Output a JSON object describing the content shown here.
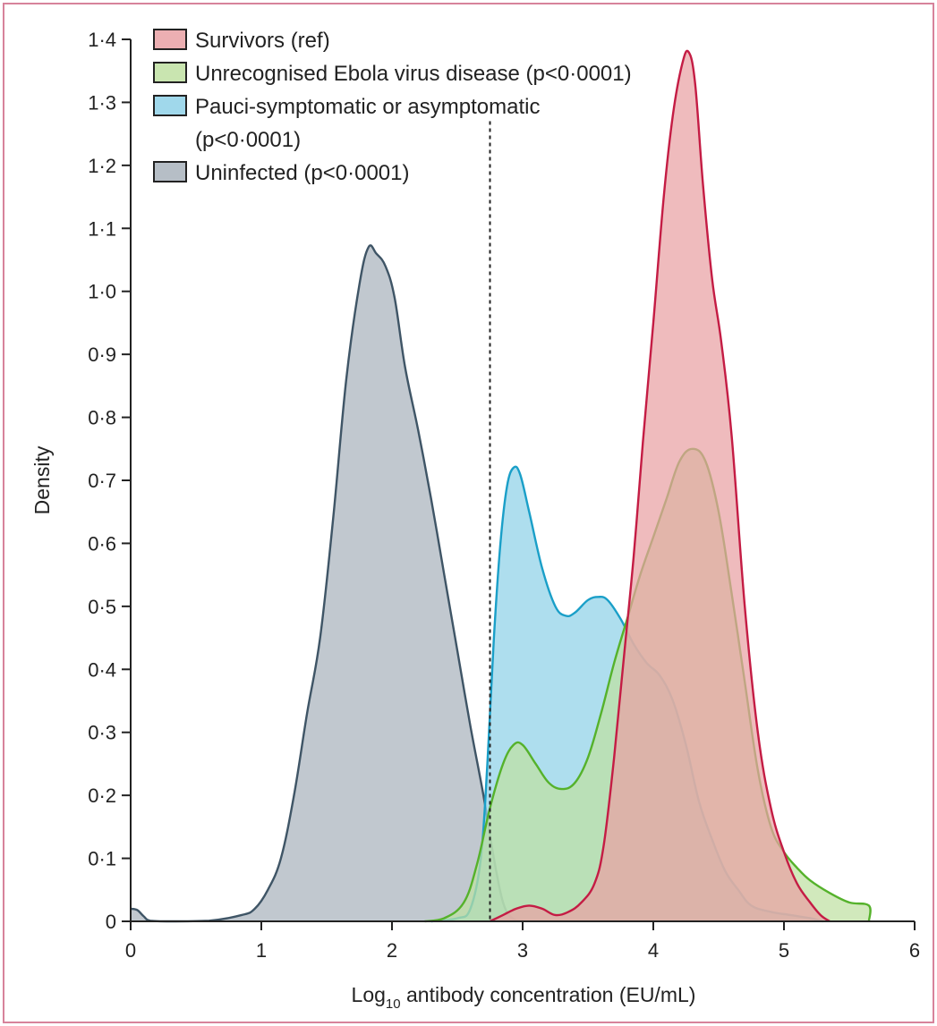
{
  "chart_data": {
    "type": "area",
    "title": "",
    "xlabel_main": "Log",
    "xlabel_sub": "10",
    "xlabel_rest": " antibody concentration (EU/mL)",
    "ylabel": "Density",
    "xlim": [
      0,
      6
    ],
    "ylim": [
      0,
      1.4
    ],
    "x_ticks": [
      "0",
      "1",
      "2",
      "3",
      "4",
      "5",
      "6"
    ],
    "y_ticks": [
      "0",
      "0·1",
      "0·2",
      "0·3",
      "0·4",
      "0·5",
      "0·6",
      "0·7",
      "0·8",
      "0·9",
      "1·0",
      "1·1",
      "1·2",
      "1·3",
      "1·4"
    ],
    "reference_line_x": 2.75,
    "grid": false,
    "legend_position": "top-left",
    "series": [
      {
        "name": "Uninfected (p<0·0001)",
        "legend_lines": [
          "Uninfected (p<0·0001)"
        ],
        "fill": "#a9b3bc",
        "stroke": "#3f5566",
        "points": [
          [
            0,
            0.02
          ],
          [
            0.05,
            0.018
          ],
          [
            0.1,
            0.008
          ],
          [
            0.15,
            0.001
          ],
          [
            0.3,
            0
          ],
          [
            0.6,
            0.001
          ],
          [
            0.85,
            0.01
          ],
          [
            0.95,
            0.02
          ],
          [
            1.05,
            0.05
          ],
          [
            1.15,
            0.1
          ],
          [
            1.25,
            0.2
          ],
          [
            1.35,
            0.33
          ],
          [
            1.45,
            0.45
          ],
          [
            1.55,
            0.64
          ],
          [
            1.65,
            0.86
          ],
          [
            1.75,
            1.01
          ],
          [
            1.82,
            1.07
          ],
          [
            1.88,
            1.06
          ],
          [
            1.95,
            1.04
          ],
          [
            2.02,
            0.99
          ],
          [
            2.1,
            0.88
          ],
          [
            2.2,
            0.78
          ],
          [
            2.3,
            0.67
          ],
          [
            2.4,
            0.55
          ],
          [
            2.5,
            0.43
          ],
          [
            2.6,
            0.31
          ],
          [
            2.7,
            0.2
          ],
          [
            2.78,
            0.1
          ],
          [
            2.85,
            0.03
          ],
          [
            2.92,
            0.005
          ],
          [
            3.0,
            0
          ]
        ]
      },
      {
        "name": "Pauci-symptomatic or  asymptomatic (p<0·0001)",
        "legend_lines": [
          "Pauci-symptomatic or  asymptomatic",
          "(p<0·0001)"
        ],
        "fill": "#8fd1e8",
        "stroke": "#1a9fc8",
        "points": [
          [
            2.3,
            0
          ],
          [
            2.5,
            0.005
          ],
          [
            2.6,
            0.02
          ],
          [
            2.68,
            0.1
          ],
          [
            2.73,
            0.25
          ],
          [
            2.78,
            0.45
          ],
          [
            2.83,
            0.6
          ],
          [
            2.88,
            0.69
          ],
          [
            2.93,
            0.72
          ],
          [
            2.98,
            0.71
          ],
          [
            3.05,
            0.65
          ],
          [
            3.15,
            0.56
          ],
          [
            3.25,
            0.5
          ],
          [
            3.33,
            0.485
          ],
          [
            3.4,
            0.49
          ],
          [
            3.5,
            0.51
          ],
          [
            3.58,
            0.515
          ],
          [
            3.65,
            0.51
          ],
          [
            3.75,
            0.48
          ],
          [
            3.85,
            0.44
          ],
          [
            3.95,
            0.41
          ],
          [
            4.05,
            0.39
          ],
          [
            4.15,
            0.35
          ],
          [
            4.25,
            0.28
          ],
          [
            4.35,
            0.19
          ],
          [
            4.45,
            0.13
          ],
          [
            4.55,
            0.08
          ],
          [
            4.65,
            0.05
          ],
          [
            4.75,
            0.025
          ],
          [
            4.9,
            0.015
          ],
          [
            5.05,
            0.01
          ],
          [
            5.2,
            0.005
          ],
          [
            5.3,
            0
          ]
        ]
      },
      {
        "name": "Unrecognised Ebola virus disease (p<0·0001)",
        "legend_lines": [
          "Unrecognised Ebola virus disease (p<0·0001)"
        ],
        "fill": "#bfe0a2",
        "stroke": "#55b22b",
        "points": [
          [
            2.25,
            0
          ],
          [
            2.4,
            0.005
          ],
          [
            2.55,
            0.03
          ],
          [
            2.65,
            0.09
          ],
          [
            2.75,
            0.18
          ],
          [
            2.85,
            0.25
          ],
          [
            2.93,
            0.28
          ],
          [
            3.0,
            0.28
          ],
          [
            3.1,
            0.25
          ],
          [
            3.2,
            0.22
          ],
          [
            3.3,
            0.21
          ],
          [
            3.4,
            0.22
          ],
          [
            3.5,
            0.26
          ],
          [
            3.6,
            0.33
          ],
          [
            3.7,
            0.41
          ],
          [
            3.8,
            0.48
          ],
          [
            3.9,
            0.55
          ],
          [
            4.0,
            0.61
          ],
          [
            4.1,
            0.67
          ],
          [
            4.2,
            0.73
          ],
          [
            4.3,
            0.75
          ],
          [
            4.4,
            0.73
          ],
          [
            4.5,
            0.65
          ],
          [
            4.6,
            0.52
          ],
          [
            4.7,
            0.38
          ],
          [
            4.8,
            0.24
          ],
          [
            4.9,
            0.15
          ],
          [
            5.0,
            0.11
          ],
          [
            5.1,
            0.085
          ],
          [
            5.2,
            0.065
          ],
          [
            5.35,
            0.045
          ],
          [
            5.5,
            0.03
          ],
          [
            5.65,
            0.025
          ],
          [
            5.65,
            0
          ]
        ]
      },
      {
        "name": "Survivors (ref)",
        "legend_lines": [
          "Survivors (ref)"
        ],
        "fill": "#e9a1a4",
        "stroke": "#c41c44",
        "points": [
          [
            2.75,
            0
          ],
          [
            2.85,
            0.01
          ],
          [
            2.95,
            0.02
          ],
          [
            3.05,
            0.025
          ],
          [
            3.15,
            0.02
          ],
          [
            3.25,
            0.01
          ],
          [
            3.35,
            0.015
          ],
          [
            3.45,
            0.03
          ],
          [
            3.55,
            0.06
          ],
          [
            3.62,
            0.12
          ],
          [
            3.7,
            0.26
          ],
          [
            3.78,
            0.43
          ],
          [
            3.85,
            0.58
          ],
          [
            3.92,
            0.76
          ],
          [
            4.0,
            0.95
          ],
          [
            4.08,
            1.15
          ],
          [
            4.15,
            1.28
          ],
          [
            4.22,
            1.36
          ],
          [
            4.27,
            1.38
          ],
          [
            4.32,
            1.33
          ],
          [
            4.38,
            1.17
          ],
          [
            4.45,
            1.02
          ],
          [
            4.52,
            0.92
          ],
          [
            4.6,
            0.77
          ],
          [
            4.7,
            0.5
          ],
          [
            4.8,
            0.3
          ],
          [
            4.9,
            0.18
          ],
          [
            5.0,
            0.11
          ],
          [
            5.1,
            0.06
          ],
          [
            5.2,
            0.03
          ],
          [
            5.28,
            0.01
          ],
          [
            5.35,
            0
          ]
        ]
      }
    ],
    "legend_order": [
      3,
      2,
      1,
      0
    ]
  }
}
